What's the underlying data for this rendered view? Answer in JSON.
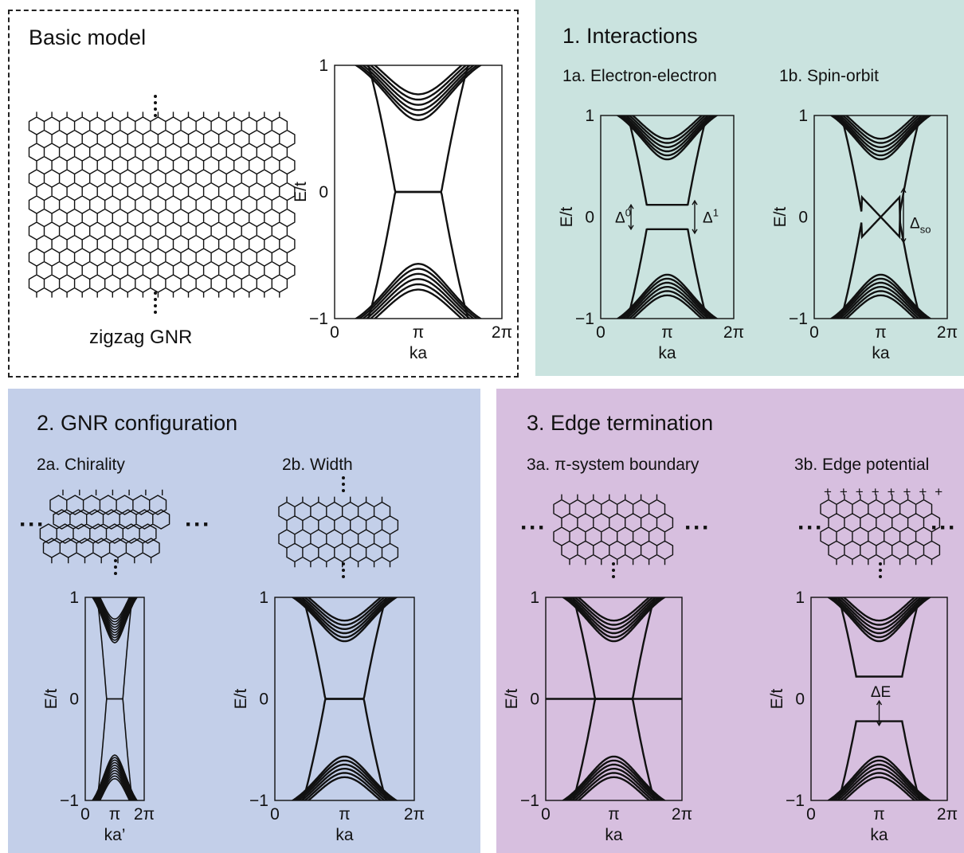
{
  "panels": {
    "basic": {
      "title": "Basic model",
      "lattice_caption": "zigzag GNR",
      "bg": "#ffffff"
    },
    "interactions": {
      "title": "1. Interactions",
      "sub_a": "1a. Electron-electron",
      "sub_b": "1b. Spin-orbit",
      "bg": "#cae3df"
    },
    "configuration": {
      "title": "2. GNR configuration",
      "sub_a": "2a. Chirality",
      "sub_b": "2b. Width",
      "bg": "#c3cfe9"
    },
    "edge": {
      "title": "3. Edge termination",
      "sub_a": "3a. π-system boundary",
      "sub_b": "3b. Edge potential",
      "bg": "#d7bfdf"
    }
  },
  "chart_data": [
    {
      "id": "basic",
      "type": "line",
      "xlabel": "ka",
      "ylabel": "E/t",
      "xticks": [
        "0",
        "π",
        "2π"
      ],
      "yticks": [
        "−1",
        "0",
        "1"
      ],
      "xlim": [
        0,
        6.283
      ],
      "ylim": [
        -1,
        1
      ],
      "annotations": []
    },
    {
      "id": "1a",
      "type": "line",
      "xlabel": "ka",
      "ylabel": "E/t",
      "xticks": [
        "0",
        "π",
        "2π"
      ],
      "yticks": [
        "−1",
        "0",
        "1"
      ],
      "xlim": [
        0,
        6.283
      ],
      "ylim": [
        -1,
        1
      ],
      "annotations": [
        {
          "text": "Δ",
          "sup": "0"
        },
        {
          "text": "Δ",
          "sup": "1"
        }
      ]
    },
    {
      "id": "1b",
      "type": "line",
      "xlabel": "ka",
      "ylabel": "E/t",
      "xticks": [
        "0",
        "π",
        "2π"
      ],
      "yticks": [
        "−1",
        "0",
        "1"
      ],
      "xlim": [
        0,
        6.283
      ],
      "ylim": [
        -1,
        1
      ],
      "annotations": [
        {
          "text": "Δ",
          "sub": "so"
        }
      ]
    },
    {
      "id": "2a",
      "type": "line",
      "xlabel": "ka’",
      "ylabel": "E/t",
      "xticks": [
        "0",
        "π",
        "2π"
      ],
      "yticks": [
        "−1",
        "0",
        "1"
      ],
      "xlim": [
        0,
        6.283
      ],
      "ylim": [
        -1,
        1
      ],
      "annotations": []
    },
    {
      "id": "2b",
      "type": "line",
      "xlabel": "ka",
      "ylabel": "E/t",
      "xticks": [
        "0",
        "π",
        "2π"
      ],
      "yticks": [
        "−1",
        "0",
        "1"
      ],
      "xlim": [
        0,
        6.283
      ],
      "ylim": [
        -1,
        1
      ],
      "annotations": []
    },
    {
      "id": "3a",
      "type": "line",
      "xlabel": "ka",
      "ylabel": "E/t",
      "xticks": [
        "0",
        "π",
        "2π"
      ],
      "yticks": [
        "−1",
        "0",
        "1"
      ],
      "xlim": [
        0,
        6.283
      ],
      "ylim": [
        -1,
        1
      ],
      "annotations": []
    },
    {
      "id": "3b",
      "type": "line",
      "xlabel": "ka",
      "ylabel": "E/t",
      "xticks": [
        "0",
        "π",
        "2π"
      ],
      "yticks": [
        "−1",
        "0",
        "1"
      ],
      "xlim": [
        0,
        6.283
      ],
      "ylim": [
        -1,
        1
      ],
      "annotations": [
        {
          "text": "ΔE"
        }
      ]
    }
  ]
}
